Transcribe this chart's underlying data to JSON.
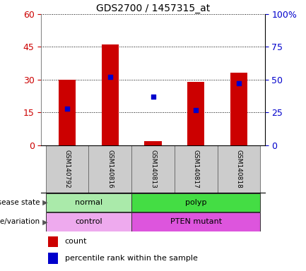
{
  "title": "GDS2700 / 1457315_at",
  "samples": [
    "GSM140792",
    "GSM140816",
    "GSM140813",
    "GSM140817",
    "GSM140818"
  ],
  "count_values": [
    30,
    46,
    2,
    29,
    33
  ],
  "percentile_values": [
    28,
    52,
    37,
    27,
    47
  ],
  "left_ylim": [
    0,
    60
  ],
  "left_yticks": [
    0,
    15,
    30,
    45,
    60
  ],
  "right_ylim": [
    0,
    100
  ],
  "right_yticks": [
    0,
    25,
    50,
    75,
    100
  ],
  "right_yticklabels": [
    "0",
    "25",
    "50",
    "75",
    "100%"
  ],
  "bar_color": "#cc0000",
  "dot_color": "#0000cc",
  "left_tick_color": "#cc0000",
  "right_tick_color": "#0000cc",
  "disease_state_groups": [
    {
      "label": "normal",
      "start": 0,
      "end": 2,
      "color": "#aaeaaa"
    },
    {
      "label": "polyp",
      "start": 2,
      "end": 5,
      "color": "#44dd44"
    }
  ],
  "genotype_groups": [
    {
      "label": "control",
      "start": 0,
      "end": 2,
      "color": "#eeaaee"
    },
    {
      "label": "PTEN mutant",
      "start": 2,
      "end": 5,
      "color": "#dd55dd"
    }
  ],
  "disease_label": "disease state",
  "genotype_label": "genotype/variation",
  "legend_count": "count",
  "legend_percentile": "percentile rank within the sample",
  "bar_width": 0.4,
  "bg_color": "#ffffff",
  "figsize": [
    4.33,
    3.84
  ],
  "dpi": 100
}
